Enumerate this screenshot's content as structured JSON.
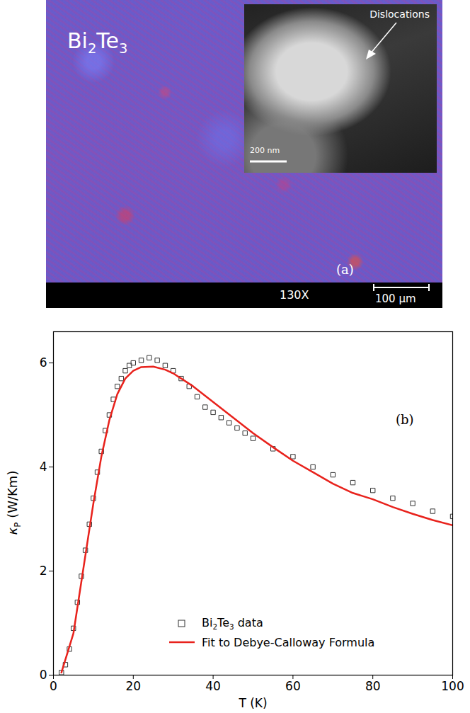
{
  "micrograph": {
    "label": "Bi2Te3",
    "inset_annotation": "Dislocations",
    "inset_scale_bar": "200 nm",
    "panel": "(a)",
    "magnification": "130X",
    "scale_bar": "100 µm"
  },
  "chart_data": {
    "type": "scatter",
    "annotation": "(b)",
    "x_label": "T (K)",
    "y_label": "κP (W/Km)",
    "xlim": [
      0,
      100
    ],
    "ylim": [
      0,
      6.6
    ],
    "xticks": [
      0,
      20,
      40,
      60,
      80,
      100
    ],
    "yticks": [
      0,
      2,
      4,
      6
    ],
    "legend": "bottom",
    "series": [
      {
        "name": "Bi2Te3 data",
        "type": "scatter",
        "marker": "square",
        "color": "#333333",
        "x": [
          2,
          3,
          4,
          5,
          6,
          7,
          8,
          9,
          10,
          11,
          12,
          13,
          14,
          15,
          16,
          17,
          18,
          19,
          20,
          22,
          24,
          26,
          28,
          30,
          32,
          34,
          36,
          38,
          40,
          42,
          44,
          46,
          48,
          50,
          55,
          60,
          65,
          70,
          75,
          80,
          85,
          90,
          95,
          100
        ],
        "values": [
          0.05,
          0.2,
          0.5,
          0.9,
          1.4,
          1.9,
          2.4,
          2.9,
          3.4,
          3.9,
          4.3,
          4.7,
          5.0,
          5.3,
          5.55,
          5.7,
          5.85,
          5.95,
          6.0,
          6.05,
          6.1,
          6.05,
          5.95,
          5.85,
          5.7,
          5.55,
          5.35,
          5.15,
          5.05,
          4.95,
          4.85,
          4.75,
          4.65,
          4.55,
          4.35,
          4.2,
          4.0,
          3.85,
          3.7,
          3.55,
          3.4,
          3.3,
          3.15,
          3.05
        ]
      },
      {
        "name": "Fit to Debye-Calloway Formula",
        "type": "line",
        "line_style": "solid",
        "color": "#e8221c",
        "x": [
          2,
          5,
          8,
          10,
          12,
          14,
          16,
          18,
          20,
          22,
          25,
          28,
          30,
          35,
          40,
          45,
          50,
          55,
          60,
          65,
          70,
          75,
          80,
          85,
          90,
          95,
          100
        ],
        "values": [
          0.05,
          0.8,
          2.3,
          3.3,
          4.2,
          4.9,
          5.4,
          5.7,
          5.85,
          5.92,
          5.93,
          5.87,
          5.8,
          5.55,
          5.25,
          4.95,
          4.65,
          4.38,
          4.12,
          3.9,
          3.68,
          3.5,
          3.38,
          3.23,
          3.1,
          2.98,
          2.88
        ]
      }
    ]
  }
}
